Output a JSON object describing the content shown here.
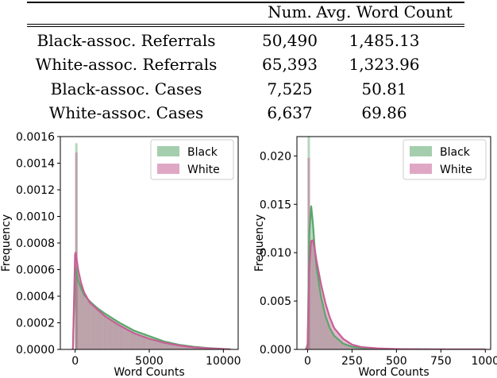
{
  "table": {
    "headers": [
      "",
      "Num.",
      "Avg. Word Count"
    ],
    "rows": [
      [
        "Black-assoc. Referrals",
        "50,490",
        "1,485.13"
      ],
      [
        "White-assoc. Referrals",
        "65,393",
        "1,323.96"
      ],
      [
        "Black-assoc. Cases",
        "7,525",
        "50.81"
      ],
      [
        "White-assoc. Cases",
        "6,637",
        "69.86"
      ]
    ]
  },
  "chart_data": [
    {
      "type": "histogram",
      "title": "",
      "xlabel": "Word Counts",
      "ylabel": "Frequency",
      "xlim": [
        -1000,
        11000
      ],
      "ylim": [
        0,
        0.0016
      ],
      "xticks": [
        0,
        5000,
        10000
      ],
      "xtick_labels": [
        "0",
        "5000",
        "10000"
      ],
      "yticks": [
        0,
        0.0002,
        0.0004,
        0.0006,
        0.0008,
        0.001,
        0.0012,
        0.0014,
        0.0016
      ],
      "ytick_labels": [
        "0.0000",
        "0.0002",
        "0.0004",
        "0.0006",
        "0.0008",
        "0.0010",
        "0.0012",
        "0.0014",
        "0.0016"
      ],
      "legend_position": "top-right",
      "grid": false,
      "spike": [
        {
          "x": 0,
          "black": 0.00155,
          "white": 0.00148
        }
      ],
      "series": [
        {
          "name": "Black",
          "color": "#5aa66b",
          "x": [
            -150,
            0,
            100,
            200,
            400,
            600,
            1000,
            1500,
            2000,
            3000,
            4000,
            5000,
            6000,
            7000,
            8000,
            9000,
            10000,
            10500
          ],
          "y": [
            0,
            0.00063,
            0.00058,
            0.00052,
            0.00046,
            0.00041,
            0.00036,
            0.00031,
            0.00027,
            0.0002,
            0.00014,
            0.0001,
            6e-05,
            3.5e-05,
            2e-05,
            1e-05,
            4e-06,
            0
          ]
        },
        {
          "name": "White",
          "color": "#c65f95",
          "x": [
            -150,
            0,
            100,
            200,
            400,
            600,
            1000,
            1500,
            2000,
            3000,
            4000,
            5000,
            6000,
            7000,
            8000,
            9000,
            10000,
            10500
          ],
          "y": [
            0,
            0.00075,
            0.00068,
            0.0006,
            0.0005,
            0.00043,
            0.00035,
            0.0003,
            0.00025,
            0.00018,
            0.00012,
            8e-05,
            5e-05,
            3e-05,
            1.5e-05,
            8e-06,
            3e-06,
            0
          ]
        }
      ]
    },
    {
      "type": "histogram",
      "title": "",
      "xlabel": "Word Counts",
      "ylabel": "Frequency",
      "xlim": [
        -60,
        1030
      ],
      "ylim": [
        0,
        0.022
      ],
      "xticks": [
        0,
        250,
        500,
        750,
        1000
      ],
      "xtick_labels": [
        "0",
        "250",
        "500",
        "750",
        "1000"
      ],
      "yticks": [
        0,
        0.005,
        0.01,
        0.015,
        0.02
      ],
      "ytick_labels": [
        "0.000",
        "0.005",
        "0.010",
        "0.015",
        "0.020"
      ],
      "legend_position": "top-right",
      "grid": false,
      "spike": [
        {
          "x": 0,
          "black": 0.0222,
          "white": 0.0198
        }
      ],
      "series": [
        {
          "name": "Black",
          "color": "#5aa66b",
          "x": [
            -10,
            0,
            5,
            10,
            20,
            30,
            40,
            50,
            75,
            100,
            125,
            150,
            200,
            250,
            300,
            400,
            500,
            600,
            800,
            1000
          ],
          "y": [
            0,
            0.0005,
            0.006,
            0.012,
            0.0149,
            0.013,
            0.0105,
            0.0085,
            0.0055,
            0.0035,
            0.0022,
            0.0014,
            0.0006,
            0.00028,
            0.00015,
            6e-05,
            2e-05,
            1e-05,
            3e-06,
            0
          ]
        },
        {
          "name": "White",
          "color": "#c65f95",
          "x": [
            -10,
            0,
            5,
            10,
            20,
            30,
            40,
            50,
            75,
            100,
            125,
            150,
            200,
            250,
            300,
            400,
            500,
            600,
            800,
            1000
          ],
          "y": [
            0,
            0.0003,
            0.004,
            0.0085,
            0.0112,
            0.0113,
            0.0104,
            0.0092,
            0.0068,
            0.0048,
            0.0033,
            0.0022,
            0.0011,
            0.0005,
            0.00025,
            0.0001,
            4e-05,
            2e-05,
            5e-06,
            0
          ]
        }
      ]
    }
  ]
}
